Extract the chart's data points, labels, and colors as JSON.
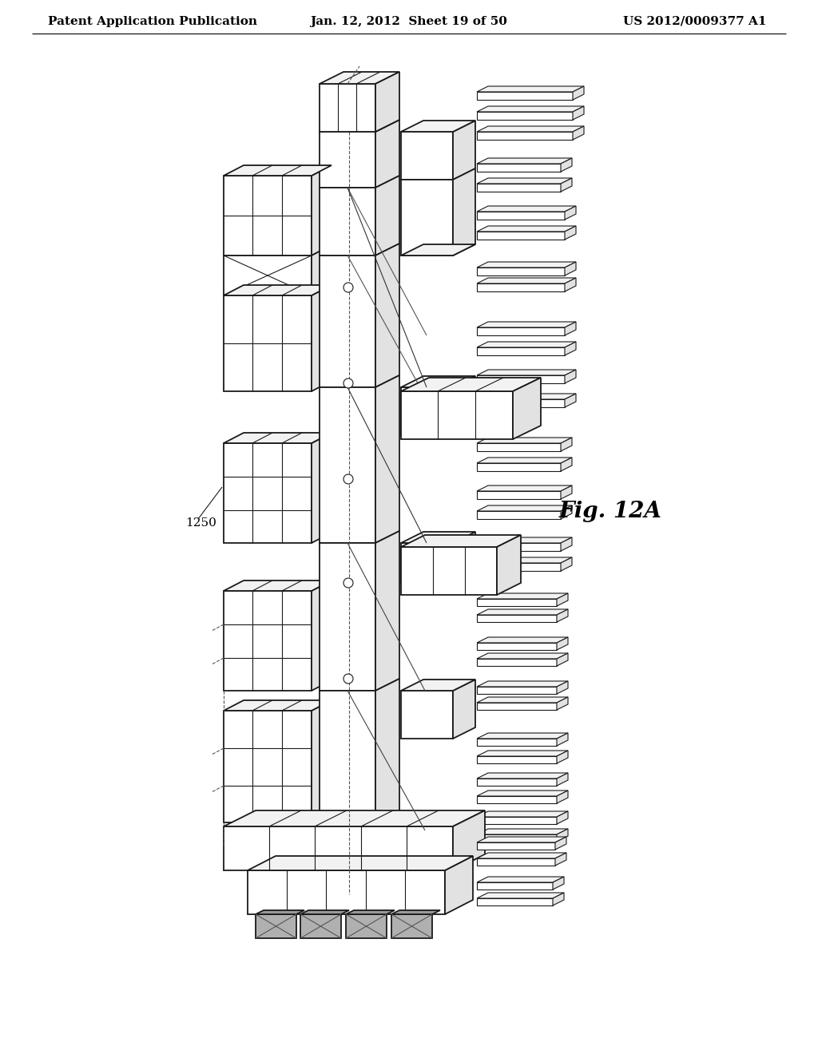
{
  "background_color": "#ffffff",
  "header_left": "Patent Application Publication",
  "header_center": "Jan. 12, 2012  Sheet 19 of 50",
  "header_right": "US 2012/0009377 A1",
  "fig_label": "Fig. 12A",
  "part_label": "1250",
  "header_fontsize": 11,
  "fig_label_fontsize": 20,
  "part_label_fontsize": 11,
  "line_color": "#1a1a1a",
  "dashed_color": "#555555",
  "lw_main": 1.3,
  "lw_thin": 0.8,
  "lw_thick": 1.8,
  "face_white": "#ffffff",
  "face_light": "#f2f2f2",
  "face_mid": "#e2e2e2",
  "face_dark": "#c8c8c8"
}
